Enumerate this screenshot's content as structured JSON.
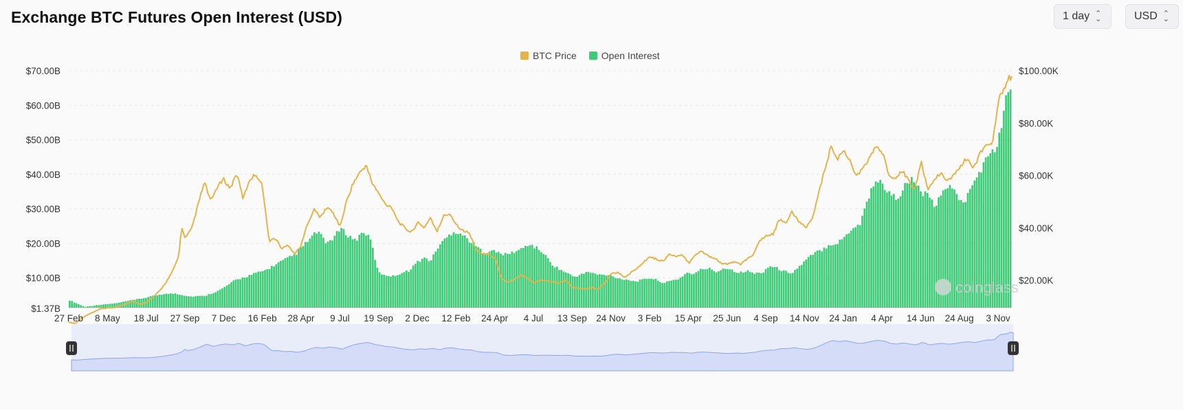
{
  "header": {
    "title": "Exchange BTC Futures Open Interest (USD)",
    "interval_label": "1 day",
    "currency_label": "USD"
  },
  "colors": {
    "btc_price": "#e6b34a",
    "open_interest": "#3ecb77",
    "navigator_fill": "#d4dcf7",
    "navigator_line": "#8fa3e8"
  },
  "watermark": "coinglass",
  "chart_data": {
    "type": "bar",
    "title": "Exchange BTC Futures Open Interest (USD)",
    "legend": [
      "BTC Price",
      "Open Interest"
    ],
    "legend_position": "top-center",
    "grid": true,
    "y_left": {
      "ticks": [
        {
          "value": 70,
          "label": "$70.00B"
        },
        {
          "value": 60,
          "label": "$60.00B"
        },
        {
          "value": 50,
          "label": "$50.00B"
        },
        {
          "value": 40,
          "label": "$40.00B"
        },
        {
          "value": 30,
          "label": "$30.00B"
        },
        {
          "value": 20,
          "label": "$20.00B"
        },
        {
          "value": 10,
          "label": "$10.00B"
        },
        {
          "value": 1.37,
          "label": "$1.37B"
        }
      ],
      "range": [
        1.37,
        70
      ]
    },
    "y_right": {
      "ticks": [
        {
          "value": 100000,
          "label": "$100.00K"
        },
        {
          "value": 80000,
          "label": "$80.00K"
        },
        {
          "value": 60000,
          "label": "$60.00K"
        },
        {
          "value": 40000,
          "label": "$40.00K"
        },
        {
          "value": 20000,
          "label": "$20.00K"
        }
      ]
    },
    "x_ticks": [
      "27 Feb",
      "8 May",
      "18 Jul",
      "27 Sep",
      "7 Dec",
      "16 Feb",
      "28 Apr",
      "9 Jul",
      "19 Sep",
      "2 Dec",
      "12 Feb",
      "24 Apr",
      "4 Jul",
      "13 Sep",
      "24 Nov",
      "3 Feb",
      "15 Apr",
      "25 Jun",
      "4 Sep",
      "14 Nov",
      "24 Jan",
      "4 Apr",
      "14 Jun",
      "24 Aug",
      "3 Nov"
    ],
    "series": [
      {
        "name": "Open Interest",
        "type": "bar",
        "unit": "USD billions",
        "points": [
          [
            0,
            3.5
          ],
          [
            4,
            1.6
          ],
          [
            8,
            2.2
          ],
          [
            12,
            2.6
          ],
          [
            16,
            3.4
          ],
          [
            20,
            4.2
          ],
          [
            24,
            5.2
          ],
          [
            28,
            5.5
          ],
          [
            32,
            4.6
          ],
          [
            36,
            4.8
          ],
          [
            40,
            6.5
          ],
          [
            44,
            9.3
          ],
          [
            48,
            10.8
          ],
          [
            52,
            12.2
          ],
          [
            56,
            14.6
          ],
          [
            60,
            16.8
          ],
          [
            64,
            21.5
          ],
          [
            66,
            23.6
          ],
          [
            68,
            20
          ],
          [
            70,
            21.5
          ],
          [
            72,
            24.3
          ],
          [
            74,
            22.3
          ],
          [
            76,
            20.8
          ],
          [
            78,
            23.6
          ],
          [
            80,
            21
          ],
          [
            82,
            11.5
          ],
          [
            84,
            10.8
          ],
          [
            86,
            10.5
          ],
          [
            88,
            11.4
          ],
          [
            90,
            12
          ],
          [
            92,
            14.2
          ],
          [
            94,
            15.8
          ],
          [
            96,
            15
          ],
          [
            98,
            19.2
          ],
          [
            100,
            21.5
          ],
          [
            102,
            23.5
          ],
          [
            104,
            22.8
          ],
          [
            106,
            21
          ],
          [
            108,
            19.2
          ],
          [
            110,
            17.3
          ],
          [
            112,
            18
          ],
          [
            114,
            17.2
          ],
          [
            116,
            16.7
          ],
          [
            118,
            17.5
          ],
          [
            120,
            18.3
          ],
          [
            122,
            19.8
          ],
          [
            124,
            18.7
          ],
          [
            126,
            17.1
          ],
          [
            128,
            14
          ],
          [
            130,
            12.6
          ],
          [
            132,
            11.5
          ],
          [
            134,
            10.3
          ],
          [
            136,
            11
          ],
          [
            138,
            11.8
          ],
          [
            140,
            11
          ],
          [
            142,
            10.8
          ],
          [
            144,
            10.6
          ],
          [
            146,
            9.8
          ],
          [
            148,
            9.6
          ],
          [
            150,
            9
          ],
          [
            152,
            9.3
          ],
          [
            154,
            10
          ],
          [
            156,
            9.4
          ],
          [
            158,
            8.5
          ],
          [
            160,
            9.2
          ],
          [
            162,
            9.8
          ],
          [
            164,
            11.5
          ],
          [
            166,
            11.1
          ],
          [
            168,
            12.6
          ],
          [
            170,
            12.7
          ],
          [
            172,
            11.7
          ],
          [
            174,
            13
          ],
          [
            176,
            12.3
          ],
          [
            178,
            11.5
          ],
          [
            180,
            12
          ],
          [
            182,
            11.3
          ],
          [
            184,
            11.5
          ],
          [
            186,
            13.5
          ],
          [
            188,
            12.8
          ],
          [
            190,
            11.8
          ],
          [
            192,
            11.5
          ],
          [
            194,
            13.4
          ],
          [
            196,
            15.5
          ],
          [
            198,
            17.2
          ],
          [
            200,
            18.2
          ],
          [
            202,
            19.8
          ],
          [
            204,
            20
          ],
          [
            206,
            22
          ],
          [
            208,
            24.5
          ],
          [
            210,
            25.6
          ],
          [
            212,
            32.6
          ],
          [
            214,
            38.3
          ],
          [
            216,
            37.3
          ],
          [
            218,
            34
          ],
          [
            220,
            33.2
          ],
          [
            222,
            36.7
          ],
          [
            224,
            38.5
          ],
          [
            226,
            35.1
          ],
          [
            228,
            33.6
          ],
          [
            230,
            30.7
          ],
          [
            232,
            34.5
          ],
          [
            234,
            37.7
          ],
          [
            236,
            32.9
          ],
          [
            238,
            32.3
          ],
          [
            240,
            37
          ],
          [
            242,
            41.2
          ],
          [
            244,
            45
          ],
          [
            246,
            47.3
          ],
          [
            248,
            55.4
          ],
          [
            249,
            63.5
          ],
          [
            250,
            64
          ]
        ],
        "max_index": 250
      },
      {
        "name": "BTC Price",
        "type": "line",
        "unit": "USD",
        "points": [
          [
            0,
            4000
          ],
          [
            2,
            3500
          ],
          [
            4,
            5500
          ],
          [
            6,
            6900
          ],
          [
            8,
            8000
          ],
          [
            10,
            9100
          ],
          [
            12,
            9400
          ],
          [
            14,
            9600
          ],
          [
            16,
            10200
          ],
          [
            18,
            11200
          ],
          [
            20,
            12000
          ],
          [
            22,
            10800
          ],
          [
            24,
            11500
          ],
          [
            26,
            13400
          ],
          [
            28,
            15700
          ],
          [
            30,
            19000
          ],
          [
            32,
            23000
          ],
          [
            34,
            29000
          ],
          [
            35,
            40500
          ],
          [
            36,
            35800
          ],
          [
            38,
            39500
          ],
          [
            40,
            48600
          ],
          [
            42,
            57500
          ],
          [
            44,
            50000
          ],
          [
            46,
            55700
          ],
          [
            48,
            58500
          ],
          [
            50,
            55000
          ],
          [
            52,
            61000
          ],
          [
            54,
            51000
          ],
          [
            56,
            58500
          ],
          [
            58,
            60500
          ],
          [
            60,
            56000
          ],
          [
            62,
            35000
          ],
          [
            64,
            36000
          ],
          [
            66,
            32000
          ],
          [
            68,
            33500
          ],
          [
            70,
            30000
          ],
          [
            72,
            33400
          ],
          [
            74,
            42000
          ],
          [
            76,
            47000
          ],
          [
            78,
            44000
          ],
          [
            80,
            48000
          ],
          [
            82,
            45500
          ],
          [
            84,
            40500
          ],
          [
            86,
            50000
          ],
          [
            88,
            57000
          ],
          [
            90,
            60800
          ],
          [
            92,
            64000
          ],
          [
            94,
            57000
          ],
          [
            96,
            53000
          ],
          [
            98,
            49000
          ],
          [
            100,
            48000
          ],
          [
            102,
            42500
          ],
          [
            104,
            40000
          ],
          [
            106,
            38200
          ],
          [
            108,
            42000
          ],
          [
            110,
            40000
          ],
          [
            112,
            44000
          ],
          [
            114,
            38300
          ],
          [
            116,
            44500
          ],
          [
            118,
            45500
          ],
          [
            120,
            41300
          ],
          [
            122,
            39000
          ],
          [
            124,
            38000
          ],
          [
            126,
            32000
          ],
          [
            128,
            30000
          ],
          [
            130,
            30000
          ],
          [
            132,
            28500
          ],
          [
            134,
            20500
          ],
          [
            136,
            19000
          ],
          [
            138,
            20500
          ],
          [
            140,
            22000
          ],
          [
            142,
            21000
          ],
          [
            144,
            19000
          ],
          [
            146,
            20000
          ],
          [
            148,
            19800
          ],
          [
            150,
            19300
          ],
          [
            152,
            19000
          ],
          [
            154,
            20000
          ],
          [
            156,
            17000
          ],
          [
            158,
            16800
          ],
          [
            160,
            16600
          ],
          [
            162,
            17200
          ],
          [
            164,
            16500
          ],
          [
            166,
            19000
          ],
          [
            168,
            22500
          ],
          [
            170,
            23000
          ],
          [
            172,
            21000
          ],
          [
            174,
            22800
          ],
          [
            176,
            24800
          ],
          [
            178,
            27000
          ],
          [
            180,
            29000
          ],
          [
            182,
            28000
          ],
          [
            184,
            27200
          ],
          [
            186,
            30000
          ],
          [
            188,
            29000
          ],
          [
            190,
            29500
          ],
          [
            192,
            26500
          ],
          [
            194,
            30000
          ],
          [
            196,
            31000
          ],
          [
            198,
            29300
          ],
          [
            200,
            28500
          ],
          [
            202,
            26500
          ],
          [
            204,
            26000
          ],
          [
            206,
            27200
          ],
          [
            208,
            26000
          ],
          [
            210,
            28000
          ],
          [
            212,
            30000
          ],
          [
            214,
            35000
          ],
          [
            216,
            37000
          ],
          [
            218,
            37500
          ],
          [
            220,
            43000
          ],
          [
            222,
            42000
          ],
          [
            224,
            46000
          ],
          [
            226,
            42500
          ],
          [
            228,
            40000
          ],
          [
            230,
            43000
          ],
          [
            232,
            52000
          ],
          [
            234,
            62000
          ],
          [
            236,
            71000
          ],
          [
            238,
            66000
          ],
          [
            240,
            70000
          ],
          [
            242,
            65000
          ],
          [
            244,
            60000
          ],
          [
            246,
            62500
          ],
          [
            248,
            67000
          ],
          [
            249,
            69500
          ],
          [
            250,
            71000
          ],
          [
            252,
            68500
          ],
          [
            254,
            60000
          ],
          [
            256,
            58000
          ],
          [
            258,
            62000
          ],
          [
            260,
            58000
          ],
          [
            262,
            55000
          ],
          [
            264,
            65000
          ],
          [
            266,
            54500
          ],
          [
            268,
            58500
          ],
          [
            270,
            60800
          ],
          [
            272,
            57500
          ],
          [
            274,
            60000
          ],
          [
            276,
            63500
          ],
          [
            278,
            66500
          ],
          [
            280,
            62500
          ],
          [
            282,
            68000
          ],
          [
            284,
            72000
          ],
          [
            286,
            72000
          ],
          [
            288,
            90500
          ],
          [
            290,
            93000
          ],
          [
            291,
            98000
          ],
          [
            292,
            97000
          ]
        ],
        "max_index": 292
      }
    ]
  }
}
